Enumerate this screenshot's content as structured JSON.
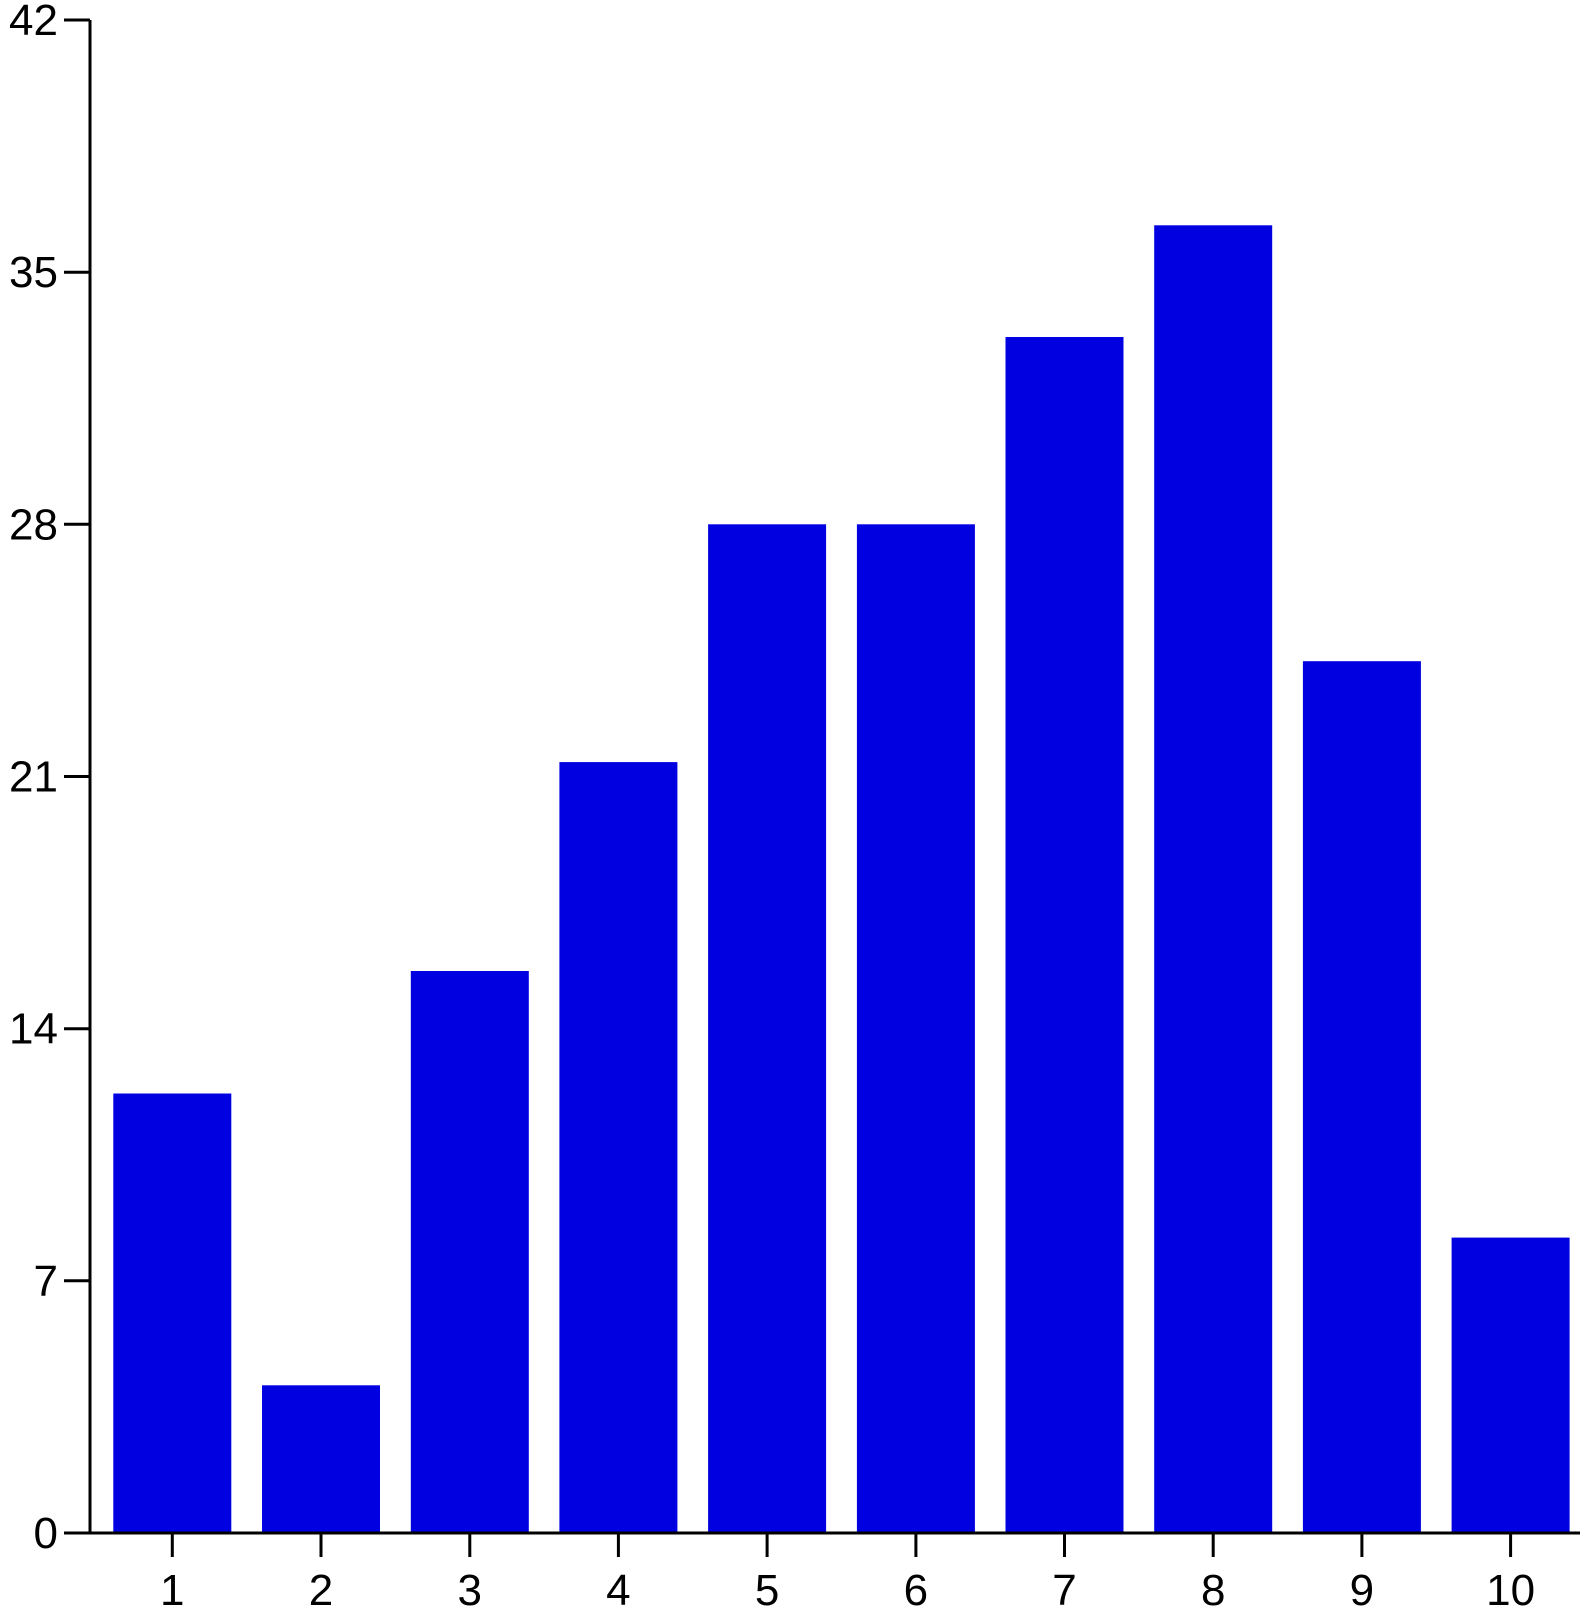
{
  "chart_data": {
    "type": "bar",
    "categories": [
      "1",
      "2",
      "3",
      "4",
      "5",
      "6",
      "7",
      "8",
      "9",
      "10"
    ],
    "values": [
      12.2,
      4.1,
      15.6,
      21.4,
      28.0,
      28.0,
      33.2,
      36.3,
      24.2,
      8.2
    ],
    "title": "",
    "xlabel": "",
    "ylabel": "",
    "ylim": [
      0,
      42
    ],
    "yticks": [
      "0",
      "7",
      "14",
      "21",
      "28",
      "35",
      "42"
    ],
    "grid": false,
    "legend": "none",
    "bar_color": "#0000E0"
  }
}
